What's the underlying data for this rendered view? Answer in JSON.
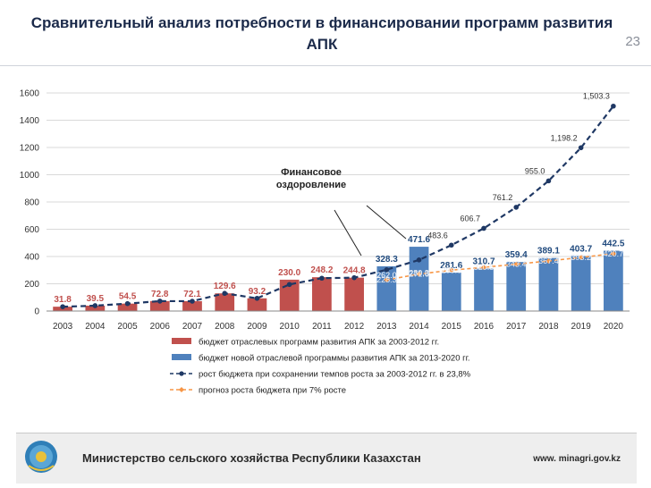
{
  "slide": {
    "title": "Сравнительный анализ потребности в финансировании программ развития АПК",
    "number": "23"
  },
  "annotation": {
    "text_line1": "Финансовое",
    "text_line2": "оздоровление"
  },
  "footer": {
    "org": "Министерство сельского хозяйства Республики Казахстан",
    "website": "www. minagri.gov.kz"
  },
  "chart_data": {
    "type": "bar",
    "ylim": [
      0,
      1600
    ],
    "yticks": [
      0,
      200,
      400,
      600,
      800,
      1000,
      1200,
      1400,
      1600
    ],
    "grid": true,
    "legend_position": "bottom",
    "categories": [
      "2003",
      "2004",
      "2005",
      "2006",
      "2007",
      "2008",
      "2009",
      "2010",
      "2011",
      "2012",
      "2013",
      "2014",
      "2015",
      "2016",
      "2017",
      "2018",
      "2019",
      "2020"
    ],
    "series": [
      {
        "name": "бюджет отраслевых программ развития АПК за 2003-2012 гг.",
        "kind": "bar",
        "color": "#c0504d",
        "values": [
          31.8,
          39.5,
          54.5,
          72.8,
          72.1,
          129.6,
          93.2,
          230.0,
          248.2,
          244.8,
          null,
          null,
          null,
          null,
          null,
          null,
          null,
          null
        ],
        "labels": [
          "31.8",
          "39.5",
          "54.5",
          "72.8",
          "72.1",
          "129.6",
          "93.2",
          "230.0",
          "248.2",
          "244.8",
          "",
          "",
          "",
          "",
          "",
          "",
          "",
          ""
        ]
      },
      {
        "name": "бюджет новой отраслевой программы развития АПК за 2013-2020 гг.",
        "kind": "bar",
        "color": "#4f81bd",
        "values": [
          null,
          null,
          null,
          null,
          null,
          null,
          null,
          null,
          null,
          null,
          328.3,
          471.6,
          281.6,
          310.7,
          359.4,
          389.1,
          403.7,
          442.5
        ],
        "labels": [
          "",
          "",
          "",
          "",
          "",
          "",
          "",
          "",
          "",
          "",
          "328.3",
          "471.6",
          "281.6",
          "310.7",
          "359.4",
          "389.1",
          "403.7",
          "442.5"
        ]
      },
      {
        "name": "рост бюджета при сохранении темпов роста за 2003-2012 гг. в 23,8%",
        "kind": "line",
        "color": "#1f3864",
        "values": [
          31.8,
          39.5,
          54.5,
          72.8,
          72.1,
          129.6,
          93.2,
          195,
          241,
          244.8,
          303,
          375,
          483.6,
          606.7,
          761.2,
          955.0,
          1198.2,
          1503.3
        ],
        "labels": [
          "",
          "",
          "",
          "",
          "",
          "",
          "",
          "",
          "",
          "",
          "",
          "",
          "483.6",
          "606.7",
          "761.2",
          "955.0",
          "1,198.2",
          "1,503.3"
        ]
      },
      {
        "name": "прогноз роста бюджета при 7% росте",
        "kind": "line",
        "color": "#f79646",
        "values": [
          null,
          null,
          null,
          null,
          null,
          null,
          null,
          null,
          null,
          null,
          228.3,
          271.6,
          299.6,
          320.5,
          343.4,
          367.4,
          393.2,
          420.7
        ],
        "labels": [
          "",
          "",
          "",
          "",
          "",
          "",
          "",
          "",
          "",
          "",
          "228.3",
          "271.6",
          "299.6",
          "320.5",
          "343.4",
          "367.4",
          "393.2",
          "420.7"
        ]
      }
    ],
    "inner_bar_labels": [
      "",
      "",
      "",
      "",
      "",
      "",
      "",
      "",
      "",
      "",
      "262.0",
      "280.3",
      "",
      "",
      "",
      "",
      "",
      ""
    ]
  }
}
